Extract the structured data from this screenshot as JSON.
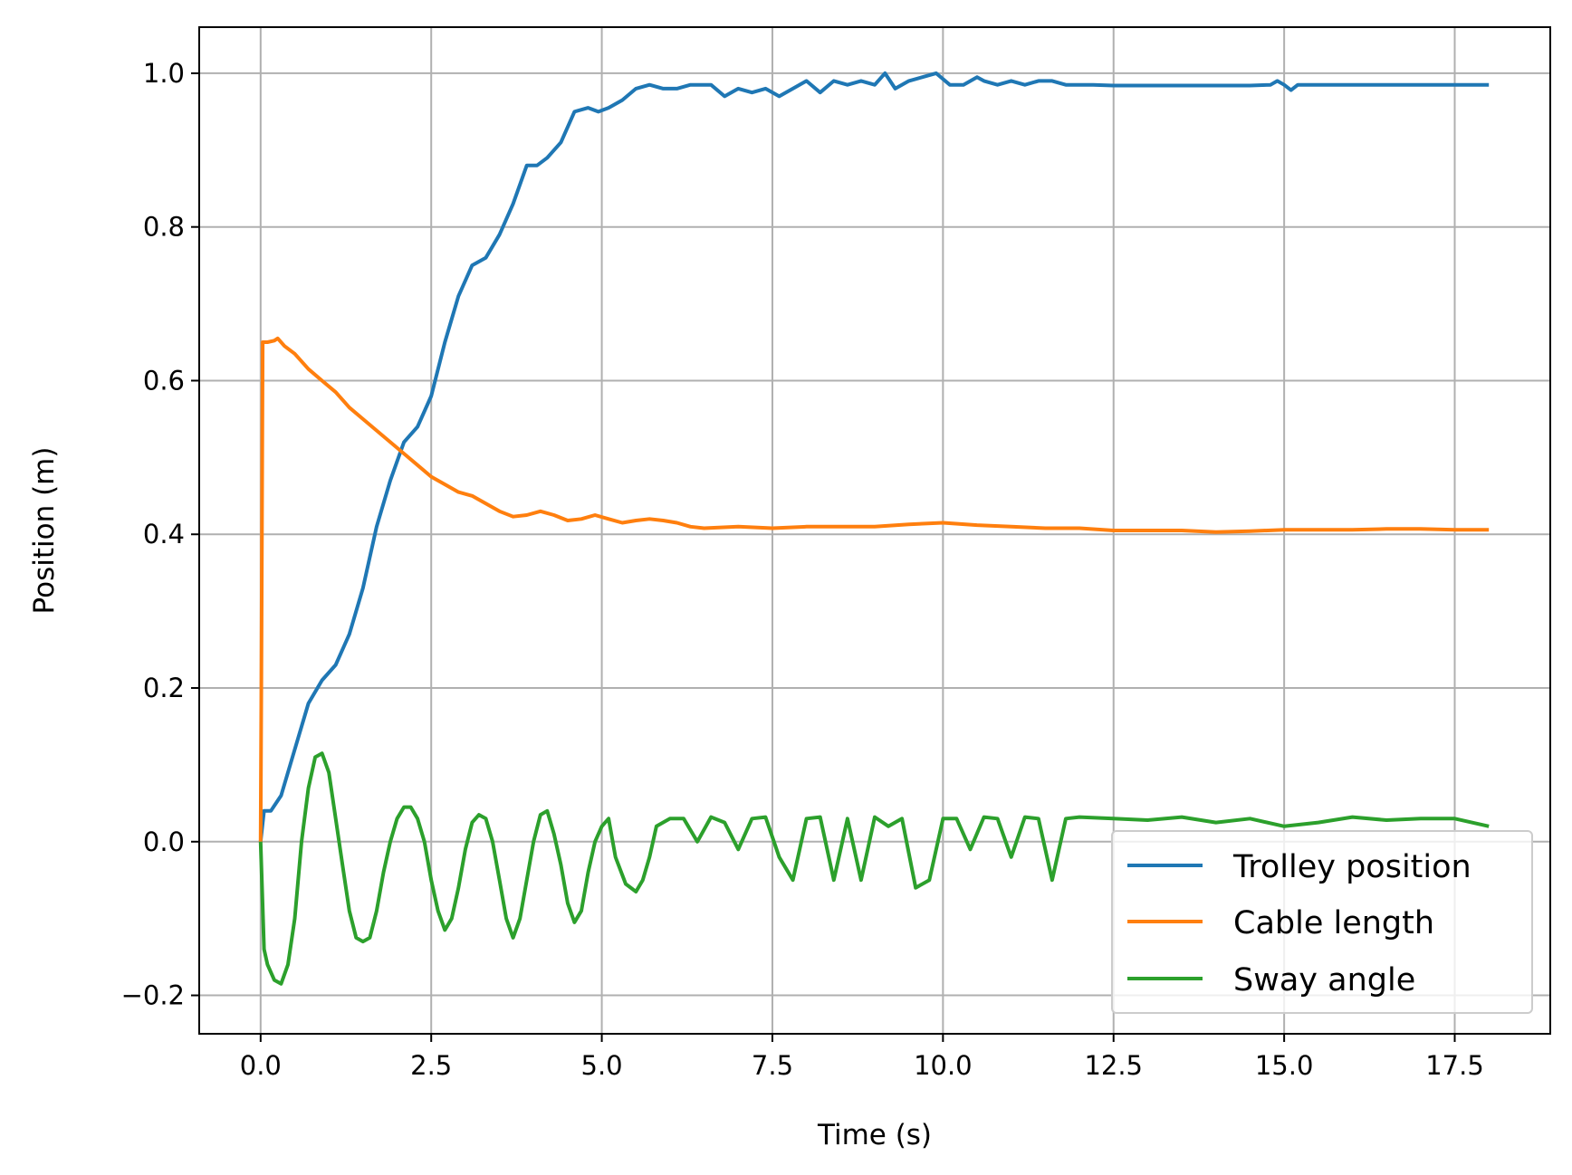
{
  "chart_data": {
    "type": "line",
    "xlabel": "Time (s)",
    "ylabel": "Position (m)",
    "xlim": [
      -0.9,
      18.9
    ],
    "ylim": [
      -0.25,
      1.06
    ],
    "grid": true,
    "legend_location": "lower-right",
    "xticks": [
      0.0,
      2.5,
      5.0,
      7.5,
      10.0,
      12.5,
      15.0,
      17.5
    ],
    "xtick_labels": [
      "0.0",
      "2.5",
      "5.0",
      "7.5",
      "10.0",
      "12.5",
      "15.0",
      "17.5"
    ],
    "yticks": [
      -0.2,
      0.0,
      0.2,
      0.4,
      0.6,
      0.8,
      1.0
    ],
    "ytick_labels": [
      "−0.2",
      "0.0",
      "0.2",
      "0.4",
      "0.6",
      "0.8",
      "1.0"
    ],
    "series": [
      {
        "name": "Trolley position",
        "color": "#1f77b4",
        "x": [
          0.0,
          0.05,
          0.15,
          0.3,
          0.5,
          0.7,
          0.9,
          1.1,
          1.3,
          1.5,
          1.7,
          1.9,
          2.1,
          2.3,
          2.5,
          2.7,
          2.9,
          3.1,
          3.3,
          3.5,
          3.7,
          3.9,
          4.05,
          4.2,
          4.4,
          4.6,
          4.8,
          4.95,
          5.1,
          5.3,
          5.5,
          5.7,
          5.9,
          6.1,
          6.3,
          6.6,
          6.8,
          7.0,
          7.2,
          7.4,
          7.6,
          7.8,
          8.0,
          8.2,
          8.4,
          8.6,
          8.8,
          9.0,
          9.15,
          9.3,
          9.5,
          9.7,
          9.9,
          10.1,
          10.3,
          10.5,
          10.6,
          10.8,
          11.0,
          11.2,
          11.4,
          11.6,
          11.8,
          12.0,
          12.2,
          12.5,
          13.0,
          13.5,
          14.0,
          14.5,
          14.8,
          14.9,
          15.0,
          15.1,
          15.2,
          15.5,
          16.0,
          16.5,
          17.0,
          17.5,
          18.0
        ],
        "values": [
          0.0,
          0.04,
          0.04,
          0.06,
          0.12,
          0.18,
          0.21,
          0.23,
          0.27,
          0.33,
          0.41,
          0.47,
          0.52,
          0.54,
          0.58,
          0.65,
          0.71,
          0.75,
          0.76,
          0.79,
          0.83,
          0.88,
          0.88,
          0.89,
          0.91,
          0.95,
          0.955,
          0.95,
          0.955,
          0.965,
          0.98,
          0.985,
          0.98,
          0.98,
          0.985,
          0.985,
          0.97,
          0.98,
          0.975,
          0.98,
          0.97,
          0.98,
          0.99,
          0.975,
          0.99,
          0.985,
          0.99,
          0.985,
          1.0,
          0.98,
          0.99,
          0.995,
          1.0,
          0.985,
          0.985,
          0.995,
          0.99,
          0.985,
          0.99,
          0.985,
          0.99,
          0.99,
          0.985,
          0.985,
          0.985,
          0.984,
          0.984,
          0.984,
          0.984,
          0.984,
          0.985,
          0.99,
          0.985,
          0.978,
          0.985,
          0.985,
          0.985,
          0.985,
          0.985,
          0.985,
          0.985
        ]
      },
      {
        "name": "Cable length",
        "color": "#ff7f0e",
        "x": [
          0.0,
          0.01,
          0.03,
          0.1,
          0.2,
          0.25,
          0.35,
          0.5,
          0.7,
          0.9,
          1.1,
          1.3,
          1.5,
          1.7,
          1.9,
          2.1,
          2.3,
          2.5,
          2.7,
          2.9,
          3.1,
          3.3,
          3.5,
          3.7,
          3.9,
          4.1,
          4.3,
          4.5,
          4.7,
          4.9,
          5.1,
          5.3,
          5.5,
          5.7,
          5.9,
          6.1,
          6.3,
          6.5,
          7.0,
          7.5,
          8.0,
          8.5,
          9.0,
          9.5,
          10.0,
          10.5,
          11.0,
          11.5,
          12.0,
          12.5,
          13.0,
          13.5,
          14.0,
          14.5,
          15.0,
          15.5,
          16.0,
          16.5,
          17.0,
          17.5,
          18.0
        ],
        "values": [
          0.0,
          0.2,
          0.65,
          0.65,
          0.652,
          0.655,
          0.645,
          0.635,
          0.615,
          0.6,
          0.585,
          0.565,
          0.55,
          0.535,
          0.52,
          0.505,
          0.49,
          0.475,
          0.465,
          0.455,
          0.45,
          0.44,
          0.43,
          0.423,
          0.425,
          0.43,
          0.425,
          0.418,
          0.42,
          0.425,
          0.42,
          0.415,
          0.418,
          0.42,
          0.418,
          0.415,
          0.41,
          0.408,
          0.41,
          0.408,
          0.41,
          0.41,
          0.41,
          0.413,
          0.415,
          0.412,
          0.41,
          0.408,
          0.408,
          0.405,
          0.405,
          0.405,
          0.403,
          0.404,
          0.406,
          0.406,
          0.406,
          0.407,
          0.407,
          0.406,
          0.406
        ]
      },
      {
        "name": "Sway angle",
        "color": "#2ca02c",
        "x": [
          0.0,
          0.05,
          0.1,
          0.2,
          0.3,
          0.4,
          0.5,
          0.6,
          0.7,
          0.8,
          0.9,
          1.0,
          1.1,
          1.2,
          1.3,
          1.4,
          1.5,
          1.6,
          1.7,
          1.8,
          1.9,
          2.0,
          2.1,
          2.2,
          2.3,
          2.4,
          2.5,
          2.6,
          2.7,
          2.8,
          2.9,
          3.0,
          3.1,
          3.2,
          3.3,
          3.4,
          3.5,
          3.6,
          3.7,
          3.8,
          3.9,
          4.0,
          4.1,
          4.2,
          4.3,
          4.4,
          4.5,
          4.6,
          4.7,
          4.8,
          4.9,
          5.0,
          5.1,
          5.2,
          5.35,
          5.5,
          5.6,
          5.7,
          5.8,
          6.0,
          6.2,
          6.4,
          6.6,
          6.8,
          7.0,
          7.2,
          7.4,
          7.6,
          7.8,
          8.0,
          8.2,
          8.4,
          8.6,
          8.8,
          9.0,
          9.2,
          9.4,
          9.6,
          9.8,
          10.0,
          10.2,
          10.4,
          10.6,
          10.8,
          11.0,
          11.2,
          11.4,
          11.6,
          11.8,
          12.0,
          12.5,
          13.0,
          13.5,
          14.0,
          14.5,
          15.0,
          15.5,
          16.0,
          16.5,
          17.0,
          17.5,
          18.0
        ],
        "values": [
          0.0,
          -0.14,
          -0.16,
          -0.18,
          -0.185,
          -0.16,
          -0.1,
          0.0,
          0.07,
          0.11,
          0.115,
          0.09,
          0.03,
          -0.03,
          -0.09,
          -0.125,
          -0.13,
          -0.125,
          -0.09,
          -0.04,
          0.0,
          0.03,
          0.045,
          0.045,
          0.03,
          0.0,
          -0.05,
          -0.09,
          -0.115,
          -0.1,
          -0.06,
          -0.01,
          0.025,
          0.035,
          0.03,
          0.0,
          -0.05,
          -0.1,
          -0.125,
          -0.1,
          -0.05,
          0.0,
          0.035,
          0.04,
          0.01,
          -0.03,
          -0.08,
          -0.105,
          -0.09,
          -0.04,
          0.0,
          0.02,
          0.03,
          -0.02,
          -0.055,
          -0.065,
          -0.05,
          -0.02,
          0.02,
          0.03,
          0.03,
          0.0,
          0.032,
          0.025,
          -0.01,
          0.03,
          0.032,
          -0.02,
          -0.05,
          0.03,
          0.032,
          -0.05,
          0.03,
          -0.05,
          0.032,
          0.02,
          0.03,
          -0.06,
          -0.05,
          0.03,
          0.03,
          -0.01,
          0.032,
          0.03,
          -0.02,
          0.032,
          0.03,
          -0.05,
          0.03,
          0.032,
          0.03,
          0.028,
          0.032,
          0.025,
          0.03,
          0.02,
          0.025,
          0.032,
          0.028,
          0.03,
          0.03,
          0.02
        ]
      }
    ]
  }
}
